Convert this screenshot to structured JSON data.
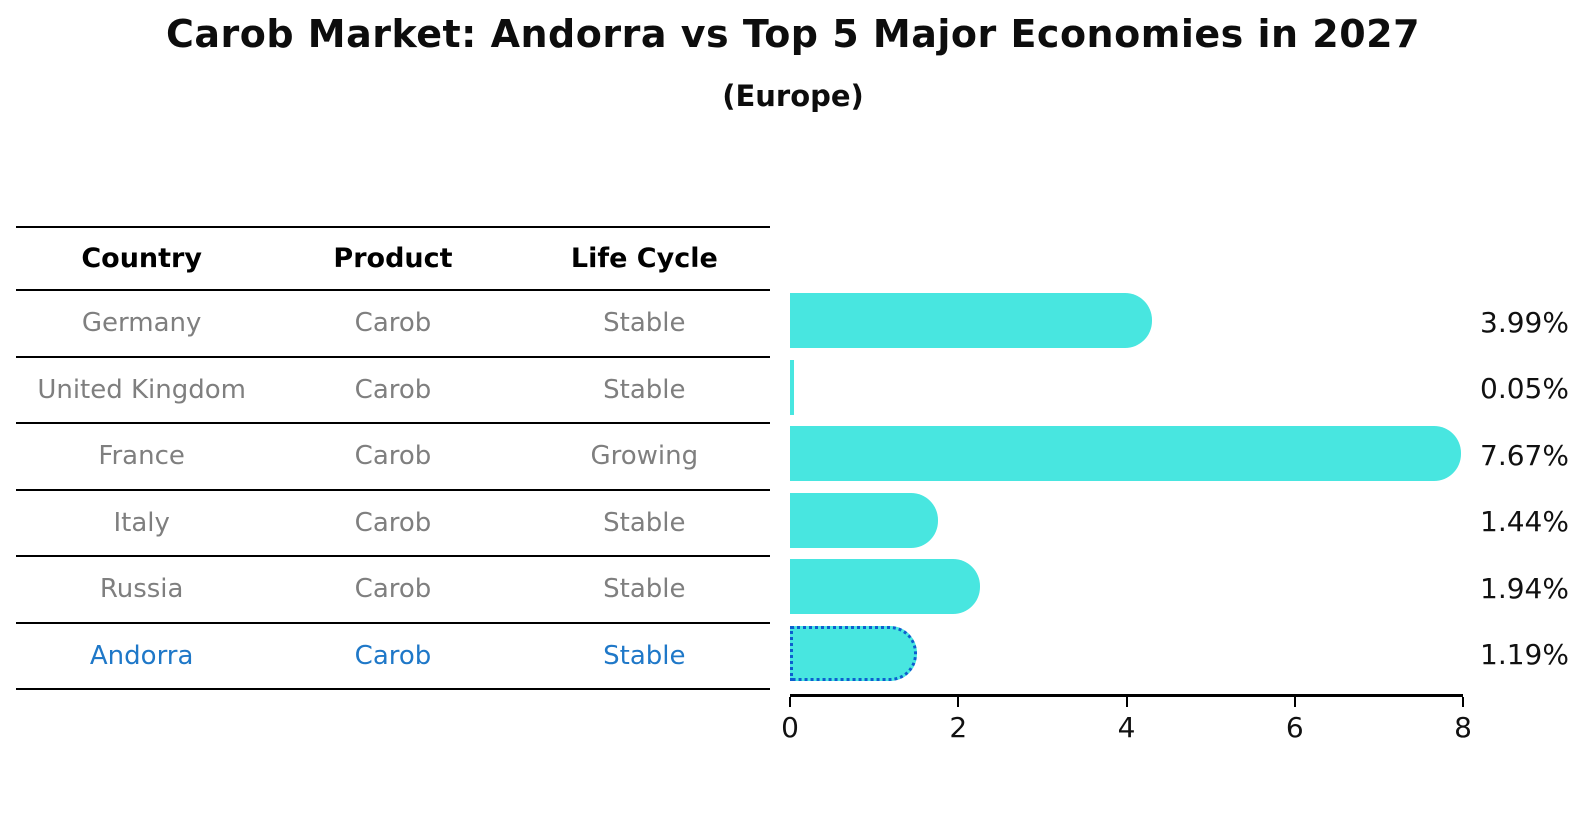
{
  "title": "Carob Market: Andorra vs Top 5 Major Economies in 2027",
  "subtitle": "(Europe)",
  "table": {
    "headers": [
      "Country",
      "Product",
      "Life Cycle"
    ],
    "rows": [
      {
        "country": "Germany",
        "product": "Carob",
        "life_cycle": "Stable",
        "highlight": false
      },
      {
        "country": "United Kingdom",
        "product": "Carob",
        "life_cycle": "Stable",
        "highlight": false
      },
      {
        "country": "France",
        "product": "Carob",
        "life_cycle": "Growing",
        "highlight": false
      },
      {
        "country": "Italy",
        "product": "Carob",
        "life_cycle": "Stable",
        "highlight": false
      },
      {
        "country": "Russia",
        "product": "Carob",
        "life_cycle": "Stable",
        "highlight": false
      },
      {
        "country": "Andorra",
        "product": "Carob",
        "life_cycle": "Stable",
        "highlight": true
      }
    ]
  },
  "chart_data": {
    "type": "bar",
    "orientation": "horizontal",
    "title": "Carob Market: Andorra vs Top 5 Major Economies in 2027",
    "subtitle": "(Europe)",
    "categories": [
      "Germany",
      "United Kingdom",
      "France",
      "Italy",
      "Russia",
      "Andorra"
    ],
    "values": [
      3.99,
      0.05,
      7.67,
      1.44,
      1.94,
      1.19
    ],
    "value_labels": [
      "3.99%",
      "0.05%",
      "7.67%",
      "1.44%",
      "1.94%",
      "1.19%"
    ],
    "xlim": [
      0,
      8
    ],
    "xticks": [
      "0",
      "2",
      "4",
      "6",
      "8"
    ],
    "xtick_positions_pct": [
      0,
      25,
      50,
      75,
      100
    ],
    "grid": false,
    "legend": "none",
    "highlight_index": 5,
    "bar_color": "#48e6e0",
    "highlight_bar_color": "#1b7ceb",
    "highlight_border_color": "#0d5ecf"
  },
  "colors": {
    "background": "#ffffff",
    "title_text": "#0d0d0d",
    "table_line": "#000000",
    "header_text": "#000000",
    "row_text": "#7f7f7f",
    "highlight_text": "#1f78c8",
    "value_text": "#111111"
  }
}
